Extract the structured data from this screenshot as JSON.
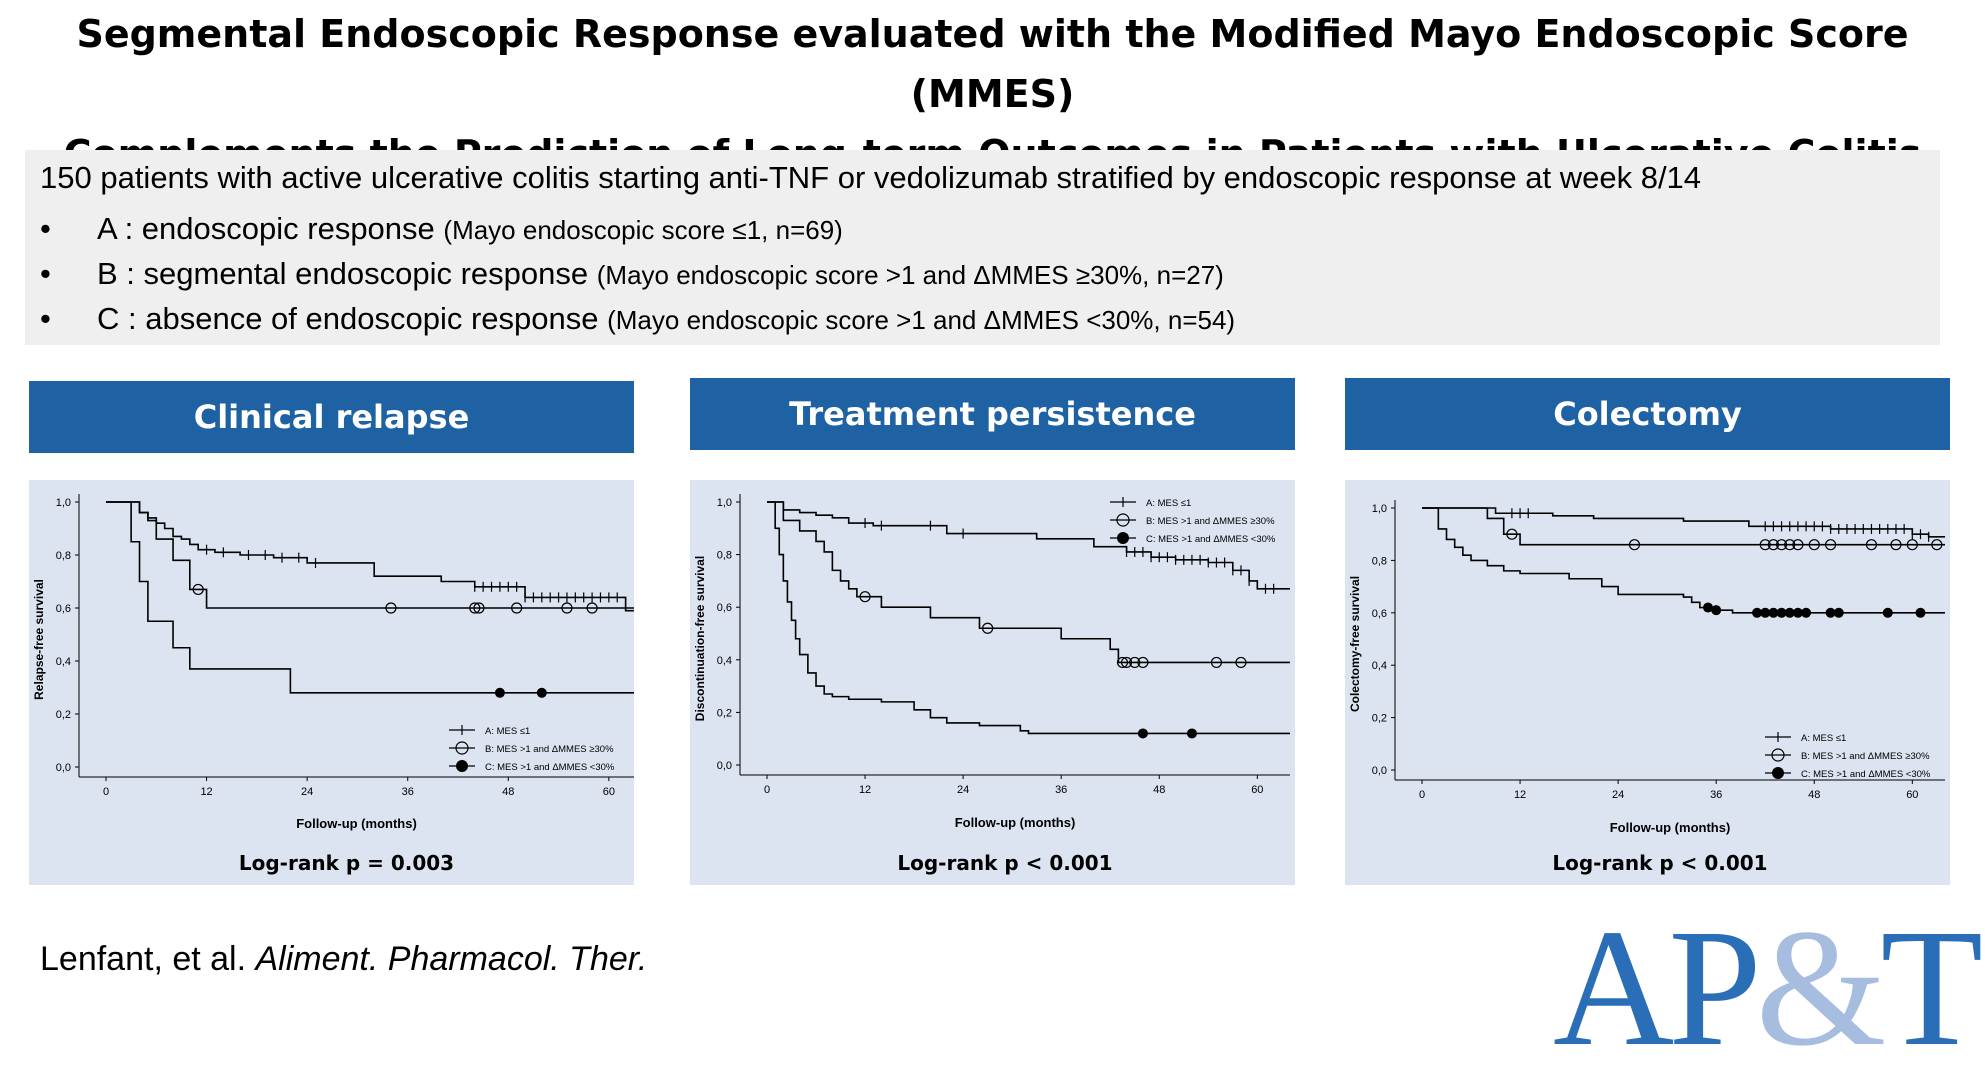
{
  "title": {
    "line1": "Segmental Endoscopic Response evaluated with the Modified Mayo Endoscopic Score (MMES)",
    "line2": "Complements the Prediction of Long-term Outcomes in Patients with Ulcerative Colitis"
  },
  "info": {
    "intro": "150 patients with active ulcerative colitis starting anti-TNF or vedolizumab stratified by endoscopic response at week 8/14",
    "bullet_char": "•",
    "bullets": [
      {
        "main": "A : endoscopic response",
        "detail": "(Mayo endoscopic score ≤1, n=69)"
      },
      {
        "main": "B : segmental endoscopic response",
        "detail": "(Mayo endoscopic score >1 and ΔMMES ≥30%, n=27)"
      },
      {
        "main": "C : absence of endoscopic response",
        "detail": "(Mayo endoscopic score >1 and ΔMMES <30%, n=54)"
      }
    ]
  },
  "panels": [
    {
      "header": "Clinical relapse"
    },
    {
      "header": "Treatment persistence"
    },
    {
      "header": "Colectomy"
    }
  ],
  "citation": {
    "authors": "Lenfant, et al.",
    "journal": "Aliment. Pharmacol. Ther."
  },
  "logo": {
    "part1": "AP",
    "amp": "&",
    "part2": "T"
  },
  "colors": {
    "header_blue": "#1f62a4",
    "panel_bg": "#dbe4f0",
    "logo_blue": "#2a6eb8",
    "logo_light": "#a6bde0"
  },
  "chart_data": [
    {
      "type": "line",
      "subtype": "kaplan-meier",
      "title": "Clinical relapse",
      "xlabel": "Follow-up (months)",
      "ylabel": "Relapse-free survival",
      "xlim": [
        0,
        63
      ],
      "ylim": [
        0,
        1.0
      ],
      "xticks": [
        0,
        12,
        24,
        36,
        48,
        60
      ],
      "yticks": [
        "0,0",
        "0,2",
        "0,4",
        "0,6",
        "0,8",
        "1,0"
      ],
      "legend": [
        "A: MES ≤1",
        "B: MES >1 and ΔMMES ≥30%",
        "C: MES >1 and ΔMMES <30%"
      ],
      "legend_position": "bottom-right",
      "footer": "Log-rank p = 0.003",
      "series": [
        {
          "name": "A: MES ≤1",
          "marker": "plus",
          "steps": [
            [
              0,
              1.0
            ],
            [
              4,
              0.96
            ],
            [
              5,
              0.94
            ],
            [
              6,
              0.92
            ],
            [
              7,
              0.9
            ],
            [
              8,
              0.87
            ],
            [
              9,
              0.86
            ],
            [
              10,
              0.84
            ],
            [
              11,
              0.82
            ],
            [
              13,
              0.81
            ],
            [
              16,
              0.8
            ],
            [
              20,
              0.79
            ],
            [
              24,
              0.77
            ],
            [
              32,
              0.72
            ],
            [
              40,
              0.7
            ],
            [
              44,
              0.68
            ],
            [
              50,
              0.64
            ],
            [
              62,
              0.59
            ],
            [
              63,
              0.59
            ]
          ],
          "censored": [
            12,
            14,
            17,
            19,
            21,
            23,
            25,
            44,
            45,
            46,
            47,
            48,
            49,
            50,
            51,
            52,
            53,
            54,
            55,
            56,
            57,
            58,
            59,
            60,
            61
          ]
        },
        {
          "name": "B: MES >1 and ΔMMES ≥30%",
          "marker": "open-circle",
          "steps": [
            [
              0,
              1.0
            ],
            [
              4,
              0.96
            ],
            [
              5,
              0.93
            ],
            [
              6,
              0.86
            ],
            [
              8,
              0.78
            ],
            [
              10,
              0.67
            ],
            [
              12,
              0.6
            ],
            [
              63,
              0.6
            ]
          ],
          "censored": [
            11,
            34,
            44,
            44.5,
            49,
            55,
            58
          ]
        },
        {
          "name": "C: MES >1 and ΔMMES <30%",
          "marker": "filled-circle",
          "steps": [
            [
              0,
              1.0
            ],
            [
              3,
              0.85
            ],
            [
              4,
              0.7
            ],
            [
              5,
              0.55
            ],
            [
              8,
              0.45
            ],
            [
              10,
              0.37
            ],
            [
              22,
              0.28
            ],
            [
              63,
              0.28
            ]
          ],
          "censored": [
            47,
            52
          ]
        }
      ]
    },
    {
      "type": "line",
      "subtype": "kaplan-meier",
      "title": "Treatment persistence",
      "xlabel": "Follow-up (months)",
      "ylabel": "Discontinuation-free survival",
      "xlim": [
        0,
        64
      ],
      "ylim": [
        0,
        1.0
      ],
      "xticks": [
        0,
        12,
        24,
        36,
        48,
        60
      ],
      "yticks": [
        "0,0",
        "0,2",
        "0,4",
        "0,6",
        "0,8",
        "1,0"
      ],
      "legend": [
        "A: MES ≤1",
        "B: MES >1 and ΔMMES ≥30%",
        "C: MES >1 and ΔMMES <30%"
      ],
      "legend_position": "top-right",
      "footer": "Log-rank p < 0.001",
      "series": [
        {
          "name": "A: MES ≤1",
          "marker": "plus",
          "steps": [
            [
              0,
              1.0
            ],
            [
              2,
              0.97
            ],
            [
              4,
              0.96
            ],
            [
              6,
              0.95
            ],
            [
              8,
              0.94
            ],
            [
              10,
              0.92
            ],
            [
              13,
              0.91
            ],
            [
              22,
              0.88
            ],
            [
              33,
              0.86
            ],
            [
              40,
              0.83
            ],
            [
              44,
              0.81
            ],
            [
              47,
              0.79
            ],
            [
              50,
              0.78
            ],
            [
              54,
              0.77
            ],
            [
              57,
              0.74
            ],
            [
              59,
              0.7
            ],
            [
              60,
              0.67
            ],
            [
              64,
              0.67
            ]
          ],
          "censored": [
            12,
            14,
            20,
            24,
            44,
            45,
            46,
            47,
            48,
            49,
            50,
            51,
            52,
            53,
            54,
            55,
            56,
            57,
            58,
            59,
            61,
            62
          ]
        },
        {
          "name": "B: MES >1 and ΔMMES ≥30%",
          "marker": "open-circle",
          "steps": [
            [
              0,
              1.0
            ],
            [
              2,
              0.93
            ],
            [
              4,
              0.89
            ],
            [
              6,
              0.85
            ],
            [
              7,
              0.81
            ],
            [
              8,
              0.74
            ],
            [
              9,
              0.7
            ],
            [
              10,
              0.67
            ],
            [
              11,
              0.64
            ],
            [
              14,
              0.6
            ],
            [
              20,
              0.56
            ],
            [
              26,
              0.52
            ],
            [
              36,
              0.48
            ],
            [
              42,
              0.44
            ],
            [
              43,
              0.39
            ],
            [
              64,
              0.39
            ]
          ],
          "censored": [
            12,
            27,
            43.5,
            44,
            45,
            46,
            55,
            58
          ]
        },
        {
          "name": "C: MES >1 and ΔMMES <30%",
          "marker": "filled-circle",
          "steps": [
            [
              0,
              1.0
            ],
            [
              1,
              0.9
            ],
            [
              1.5,
              0.8
            ],
            [
              2,
              0.7
            ],
            [
              2.5,
              0.62
            ],
            [
              3,
              0.55
            ],
            [
              3.5,
              0.48
            ],
            [
              4,
              0.42
            ],
            [
              5,
              0.35
            ],
            [
              6,
              0.3
            ],
            [
              7,
              0.27
            ],
            [
              8,
              0.26
            ],
            [
              10,
              0.25
            ],
            [
              14,
              0.24
            ],
            [
              18,
              0.21
            ],
            [
              20,
              0.18
            ],
            [
              22,
              0.16
            ],
            [
              26,
              0.15
            ],
            [
              31,
              0.13
            ],
            [
              32,
              0.12
            ],
            [
              64,
              0.12
            ]
          ],
          "censored": [
            46,
            52
          ]
        }
      ]
    },
    {
      "type": "line",
      "subtype": "kaplan-meier",
      "title": "Colectomy",
      "xlabel": "Follow-up (months)",
      "ylabel": "Colectomy-free survival",
      "xlim": [
        0,
        64
      ],
      "ylim": [
        0,
        1.0
      ],
      "xticks": [
        0,
        12,
        24,
        36,
        48,
        60
      ],
      "yticks": [
        "0,0",
        "0,2",
        "0,4",
        "0,6",
        "0,8",
        "1,0"
      ],
      "legend": [
        "A: MES ≤1",
        "B: MES >1 and ΔMMES ≥30%",
        "C: MES >1 and ΔMMES <30%"
      ],
      "legend_position": "bottom-right",
      "footer": "Log-rank p < 0.001",
      "series": [
        {
          "name": "A: MES ≤1",
          "marker": "plus",
          "steps": [
            [
              0,
              1.0
            ],
            [
              9,
              0.98
            ],
            [
              16,
              0.97
            ],
            [
              21,
              0.96
            ],
            [
              32,
              0.95
            ],
            [
              40,
              0.93
            ],
            [
              50,
              0.92
            ],
            [
              60,
              0.9
            ],
            [
              62,
              0.89
            ],
            [
              64,
              0.89
            ]
          ],
          "censored": [
            11,
            12,
            13,
            42,
            43,
            44,
            45,
            46,
            47,
            48,
            49,
            50,
            51,
            52,
            53,
            54,
            55,
            56,
            57,
            58,
            59,
            60,
            61,
            62
          ]
        },
        {
          "name": "B: MES >1 and ΔMMES ≥30%",
          "marker": "open-circle",
          "steps": [
            [
              0,
              1.0
            ],
            [
              8,
              0.96
            ],
            [
              10,
              0.9
            ],
            [
              12,
              0.86
            ],
            [
              64,
              0.86
            ]
          ],
          "censored": [
            11,
            26,
            42,
            43,
            44,
            45,
            46,
            48,
            50,
            55,
            58,
            60,
            63
          ]
        },
        {
          "name": "C: MES >1 and ΔMMES <30%",
          "marker": "filled-circle",
          "steps": [
            [
              0,
              1.0
            ],
            [
              2,
              0.92
            ],
            [
              3,
              0.88
            ],
            [
              4,
              0.85
            ],
            [
              5,
              0.82
            ],
            [
              6,
              0.8
            ],
            [
              8,
              0.78
            ],
            [
              10,
              0.76
            ],
            [
              12,
              0.75
            ],
            [
              18,
              0.73
            ],
            [
              22,
              0.7
            ],
            [
              24,
              0.67
            ],
            [
              32,
              0.66
            ],
            [
              33,
              0.64
            ],
            [
              34,
              0.62
            ],
            [
              36,
              0.61
            ],
            [
              38,
              0.6
            ],
            [
              64,
              0.6
            ]
          ],
          "censored": [
            35,
            36,
            41,
            42,
            43,
            44,
            45,
            46,
            47,
            50,
            51,
            57,
            61
          ]
        }
      ]
    }
  ]
}
